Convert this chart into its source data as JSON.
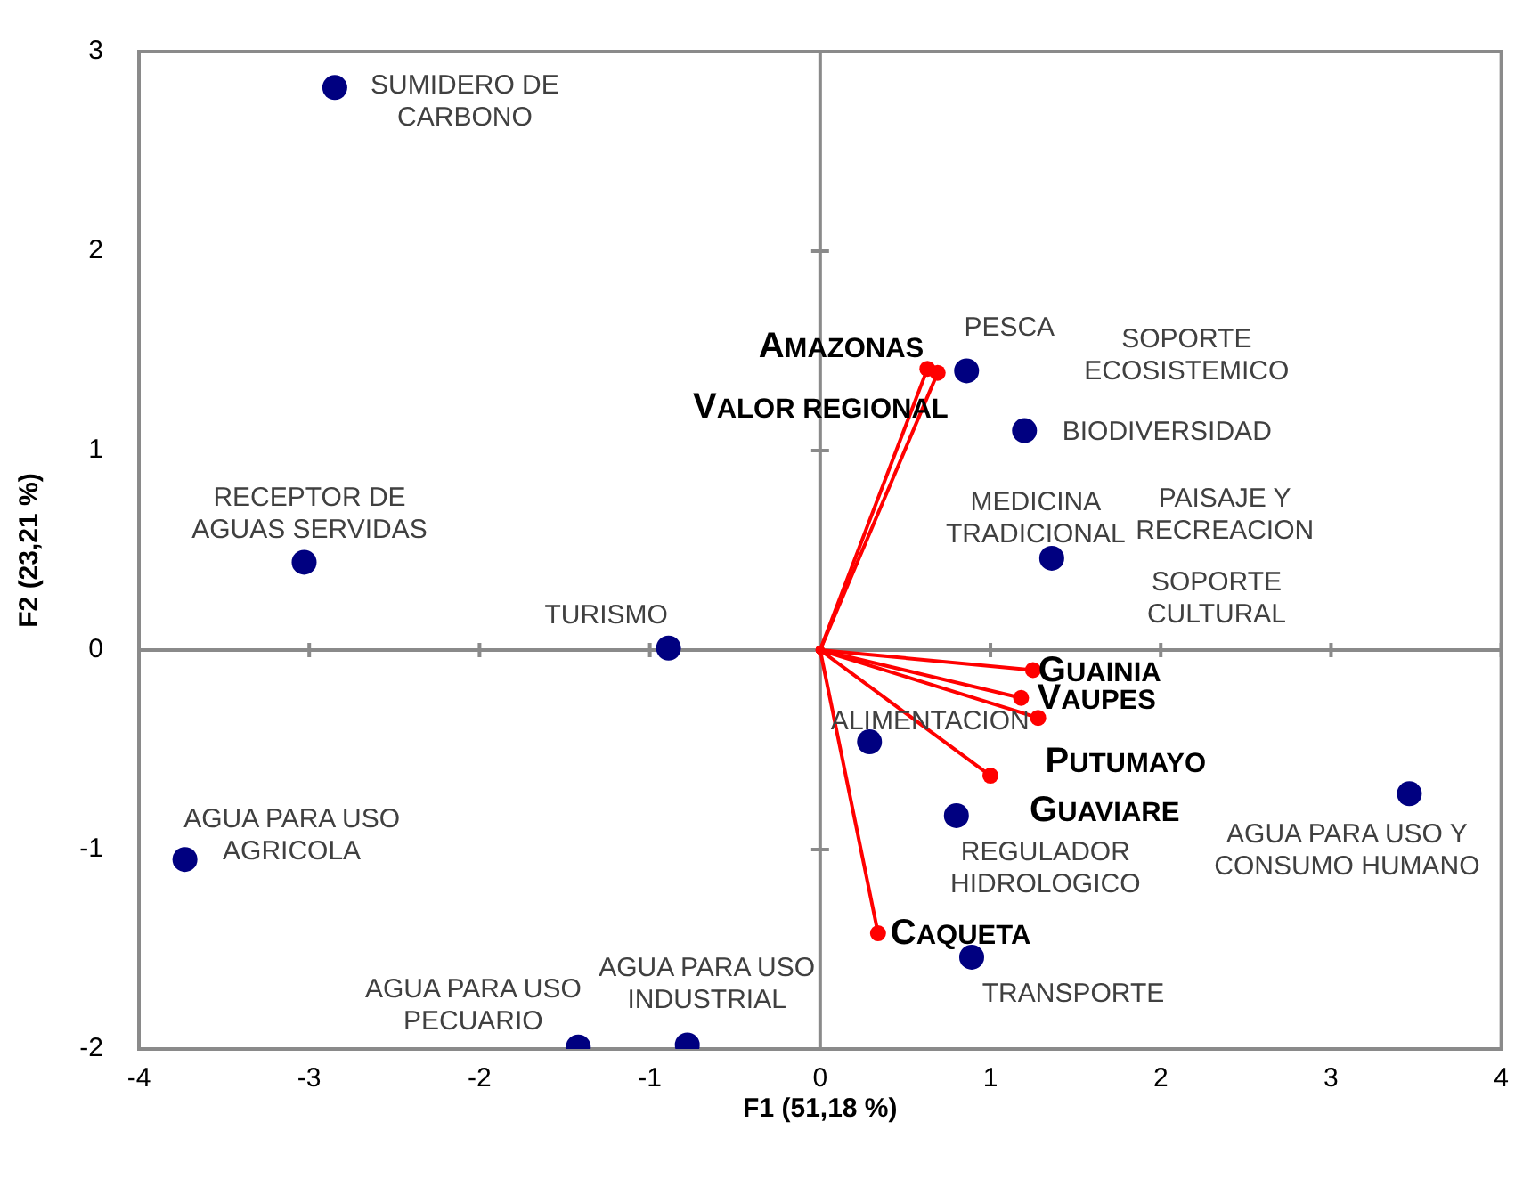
{
  "chart_data": {
    "type": "scatter",
    "xlabel": "F1 (51,18 %)",
    "ylabel": "F2 (23,21 %)",
    "xlim": [
      -4,
      4
    ],
    "ylim": [
      -2,
      3
    ],
    "xticks": [
      -4,
      -3,
      -2,
      -1,
      0,
      1,
      2,
      3,
      4
    ],
    "yticks": [
      -2,
      -1,
      0,
      1,
      2,
      3
    ],
    "marker": "circle",
    "line_style": "solid",
    "series": [
      {
        "color": "#000080",
        "x": [
          -2.85,
          -3.03,
          -0.89,
          -3.73,
          -1.42,
          -0.78,
          0.86,
          1.2,
          1.36,
          0.29,
          0.8,
          0.89,
          3.46
        ],
        "values": [
          2.82,
          0.44,
          0.01,
          -1.05,
          -1.99,
          -1.98,
          1.4,
          1.1,
          0.46,
          -0.46,
          -0.83,
          -1.54,
          -0.72
        ],
        "value_labels": [
          "SUMIDERO DE CARBONO",
          "RECEPTOR DE AGUAS SERVIDAS",
          "TURISMO",
          "AGUA PARA USO AGRICOLA",
          "AGUA PARA USO PECUARIO",
          "AGUA PARA USO INDUSTRIAL",
          "PESCA",
          "BIODIVERSIDAD",
          "MEDICINA TRADICIONAL",
          "ALIMENTACION",
          "REGULADOR HIDROLOGICO",
          "TRANSPORTE",
          "AGUA PARA USO Y CONSUMO HUMANO"
        ]
      },
      {
        "type": "line",
        "name": "AMAZONAS",
        "color": "#ff0000",
        "x": [
          0,
          0.63
        ],
        "values": [
          0,
          1.41
        ]
      },
      {
        "type": "line",
        "name": "VALOR REGIONAL",
        "color": "#ff0000",
        "x": [
          0,
          0.69
        ],
        "values": [
          0,
          1.39
        ]
      },
      {
        "type": "line",
        "name": "GUAINIA",
        "color": "#ff0000",
        "x": [
          0,
          1.25
        ],
        "values": [
          0,
          -0.1
        ]
      },
      {
        "type": "line",
        "name": "VAUPES",
        "color": "#ff0000",
        "x": [
          0,
          1.18
        ],
        "values": [
          0,
          -0.24
        ]
      },
      {
        "type": "line",
        "name": "PUTUMAYO",
        "color": "#ff0000",
        "x": [
          0,
          1.28
        ],
        "values": [
          0,
          -0.34
        ]
      },
      {
        "type": "line",
        "name": "GUAVIARE",
        "color": "#ff0000",
        "x": [
          0,
          1.0
        ],
        "values": [
          0,
          -0.63
        ]
      },
      {
        "type": "line",
        "name": "CAQUETA",
        "color": "#ff0000",
        "x": [
          0,
          0.34
        ],
        "values": [
          0,
          -1.42
        ]
      }
    ],
    "annotations": [
      "SOPORTE ECOSISTEMICO",
      "PAISAJE Y RECREACION",
      "SOPORTE CULTURAL"
    ]
  }
}
